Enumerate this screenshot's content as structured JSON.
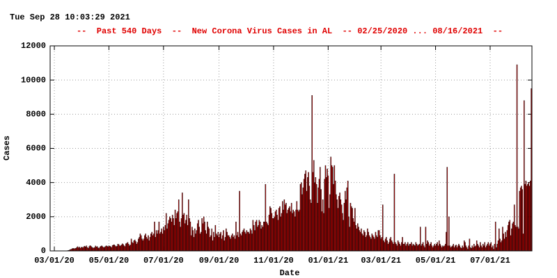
{
  "timestamp": "Tue Sep 28 10:03:29 2021",
  "chart_data": {
    "type": "bar",
    "title": "--  Past 540 Days  --  New Corona Virus Cases in AL  -- 02/25/2020 ... 08/16/2021  --",
    "xlabel": "Date",
    "ylabel": "Cases",
    "grid": true,
    "xlim": [
      -4.7,
      533.7
    ],
    "ylim": [
      0,
      12000
    ],
    "yticks": [
      0,
      2000,
      4000,
      6000,
      8000,
      10000,
      12000
    ],
    "xticks": [
      {
        "value": 0,
        "label": "03/01/20"
      },
      {
        "value": 61,
        "label": "05/01/20"
      },
      {
        "value": 122,
        "label": "07/01/20"
      },
      {
        "value": 184,
        "label": "09/01/20"
      },
      {
        "value": 245,
        "label": "11/01/20"
      },
      {
        "value": 306,
        "label": "01/01/21"
      },
      {
        "value": 365,
        "label": "03/01/21"
      },
      {
        "value": 426,
        "label": "05/01/21"
      },
      {
        "value": 487,
        "label": "07/01/21"
      }
    ],
    "x": [
      -5,
      -4,
      -3,
      -2,
      -1,
      0,
      1,
      2,
      3,
      4,
      5,
      6,
      7,
      8,
      9,
      10,
      11,
      12,
      13,
      14,
      15,
      16,
      17,
      18,
      19,
      20,
      21,
      22,
      23,
      24,
      25,
      26,
      27,
      28,
      29,
      30,
      31,
      32,
      33,
      34,
      35,
      36,
      37,
      38,
      39,
      40,
      41,
      42,
      43,
      44,
      45,
      46,
      47,
      48,
      49,
      50,
      51,
      52,
      53,
      54,
      55,
      56,
      57,
      58,
      59,
      60,
      61,
      62,
      63,
      64,
      65,
      66,
      67,
      68,
      69,
      70,
      71,
      72,
      73,
      74,
      75,
      76,
      77,
      78,
      79,
      80,
      81,
      82,
      83,
      84,
      85,
      86,
      87,
      88,
      89,
      90,
      91,
      92,
      93,
      94,
      95,
      96,
      97,
      98,
      99,
      100,
      101,
      102,
      103,
      104,
      105,
      106,
      107,
      108,
      109,
      110,
      111,
      112,
      113,
      114,
      115,
      116,
      117,
      118,
      119,
      120,
      121,
      122,
      123,
      124,
      125,
      126,
      127,
      128,
      129,
      130,
      131,
      132,
      133,
      134,
      135,
      136,
      137,
      138,
      139,
      140,
      141,
      142,
      143,
      144,
      145,
      146,
      147,
      148,
      149,
      150,
      151,
      152,
      153,
      154,
      155,
      156,
      157,
      158,
      159,
      160,
      161,
      162,
      163,
      164,
      165,
      166,
      167,
      168,
      169,
      170,
      171,
      172,
      173,
      174,
      175,
      176,
      177,
      178,
      179,
      180,
      181,
      182,
      183,
      184,
      185,
      186,
      187,
      188,
      189,
      190,
      191,
      192,
      193,
      194,
      195,
      196,
      197,
      198,
      199,
      200,
      201,
      202,
      203,
      204,
      205,
      206,
      207,
      208,
      209,
      210,
      211,
      212,
      213,
      214,
      215,
      216,
      217,
      218,
      219,
      220,
      221,
      222,
      223,
      224,
      225,
      226,
      227,
      228,
      229,
      230,
      231,
      232,
      233,
      234,
      235,
      236,
      237,
      238,
      239,
      240,
      241,
      242,
      243,
      244,
      245,
      246,
      247,
      248,
      249,
      250,
      251,
      252,
      253,
      254,
      255,
      256,
      257,
      258,
      259,
      260,
      261,
      262,
      263,
      264,
      265,
      266,
      267,
      268,
      269,
      270,
      271,
      272,
      273,
      274,
      275,
      276,
      277,
      278,
      279,
      280,
      281,
      282,
      283,
      284,
      285,
      286,
      287,
      288,
      289,
      290,
      291,
      292,
      293,
      294,
      295,
      296,
      297,
      298,
      299,
      300,
      301,
      302,
      303,
      304,
      305,
      306,
      307,
      308,
      309,
      310,
      311,
      312,
      313,
      314,
      315,
      316,
      317,
      318,
      319,
      320,
      321,
      322,
      323,
      324,
      325,
      326,
      327,
      328,
      329,
      330,
      331,
      332,
      333,
      334,
      335,
      336,
      337,
      338,
      339,
      340,
      341,
      342,
      343,
      344,
      345,
      346,
      347,
      348,
      349,
      350,
      351,
      352,
      353,
      354,
      355,
      356,
      357,
      358,
      359,
      360,
      361,
      362,
      363,
      364,
      365,
      366,
      367,
      368,
      369,
      370,
      371,
      372,
      373,
      374,
      375,
      376,
      377,
      378,
      379,
      380,
      381,
      382,
      383,
      384,
      385,
      386,
      387,
      388,
      389,
      390,
      391,
      392,
      393,
      394,
      395,
      396,
      397,
      398,
      399,
      400,
      401,
      402,
      403,
      404,
      405,
      406,
      407,
      408,
      409,
      410,
      411,
      412,
      413,
      414,
      415,
      416,
      417,
      418,
      419,
      420,
      421,
      422,
      423,
      424,
      425,
      426,
      427,
      428,
      429,
      430,
      431,
      432,
      433,
      434,
      435,
      436,
      437,
      438,
      439,
      440,
      441,
      442,
      443,
      444,
      445,
      446,
      447,
      448,
      449,
      450,
      451,
      452,
      453,
      454,
      455,
      456,
      457,
      458,
      459,
      460,
      461,
      462,
      463,
      464,
      465,
      466,
      467,
      468,
      469,
      470,
      471,
      472,
      473,
      474,
      475,
      476,
      477,
      478,
      479,
      480,
      481,
      482,
      483,
      484,
      485,
      486,
      487,
      488,
      489,
      490,
      491,
      492,
      493,
      494,
      495,
      496,
      497,
      498,
      499,
      500,
      501,
      502,
      503,
      504,
      505,
      506,
      507,
      508,
      509,
      510,
      511,
      512,
      513,
      514,
      515,
      516,
      517,
      518,
      519,
      520,
      521,
      522,
      523,
      524,
      525,
      526,
      527,
      528,
      529,
      530,
      531,
      532,
      533
    ],
    "series": [
      {
        "color": "#c00000",
        "edge": "#000000",
        "values": [
          0,
          0,
          0,
          0,
          0,
          0,
          0,
          0,
          0,
          0,
          0,
          0,
          0,
          0,
          0,
          0,
          0,
          5,
          6,
          12,
          20,
          30,
          50,
          80,
          100,
          130,
          150,
          130,
          140,
          150,
          200,
          250,
          180,
          230,
          150,
          210,
          220,
          180,
          250,
          280,
          230,
          300,
          200,
          150,
          260,
          310,
          280,
          220,
          180,
          170,
          200,
          290,
          240,
          260,
          180,
          150,
          230,
          270,
          300,
          250,
          200,
          210,
          260,
          300,
          280,
          240,
          300,
          280,
          250,
          200,
          320,
          350,
          360,
          300,
          250,
          280,
          400,
          380,
          300,
          290,
          350,
          420,
          380,
          300,
          260,
          420,
          450,
          500,
          400,
          300,
          350,
          700,
          500,
          450,
          600,
          650,
          550,
          400,
          500,
          700,
          800,
          1000,
          900,
          700,
          600,
          700,
          900,
          1000,
          800,
          700,
          900,
          600,
          800,
          1000,
          1100,
          900,
          1000,
          1700,
          800,
          1200,
          1000,
          1200,
          1700,
          1000,
          1100,
          1300,
          1000,
          1400,
          1200,
          1500,
          2200,
          1300,
          1600,
          1800,
          2000,
          1900,
          1700,
          2100,
          1900,
          1500,
          2400,
          1900,
          2200,
          2300,
          3000,
          1700,
          1400,
          1900,
          3400,
          2100,
          2200,
          1600,
          1800,
          2100,
          1500,
          3000,
          1900,
          1700,
          900,
          1400,
          1200,
          800,
          1300,
          1000,
          1200,
          1600,
          1800,
          1400,
          1000,
          1100,
          1900,
          1600,
          2000,
          1700,
          1200,
          1000,
          1700,
          1400,
          1300,
          800,
          900,
          1300,
          600,
          1100,
          800,
          1500,
          1000,
          900,
          1100,
          800,
          1000,
          1100,
          700,
          900,
          1200,
          600,
          800,
          1300,
          1100,
          900,
          900,
          800,
          700,
          900,
          1000,
          800,
          900,
          700,
          1700,
          900,
          1100,
          800,
          3500,
          1000,
          900,
          1100,
          1200,
          1300,
          1100,
          1000,
          1200,
          1100,
          1100,
          1000,
          1300,
          1200,
          1000,
          1800,
          1500,
          1200,
          1700,
          1800,
          1400,
          1500,
          1800,
          1700,
          1300,
          1500,
          1400,
          1700,
          1700,
          3900,
          1700,
          1600,
          1500,
          2100,
          2600,
          2500,
          2200,
          1900,
          1900,
          2000,
          2300,
          2400,
          2100,
          1800,
          2500,
          2600,
          2000,
          2200,
          2900,
          2400,
          3000,
          2700,
          2800,
          2200,
          2400,
          2500,
          2600,
          2300,
          2800,
          2200,
          2400,
          2300,
          2000,
          2400,
          2900,
          2400,
          2300,
          2400,
          3900,
          4000,
          3300,
          3700,
          4200,
          4500,
          4700,
          3500,
          4300,
          4600,
          3800,
          3000,
          2800,
          9100,
          4600,
          5300,
          4000,
          4300,
          3900,
          2800,
          3700,
          4200,
          4900,
          3600,
          2300,
          3000,
          2200,
          4200,
          5000,
          4300,
          4800,
          4400,
          2500,
          3300,
          5500,
          5000,
          4900,
          3900,
          5000,
          4100,
          3300,
          3000,
          2500,
          3200,
          3400,
          3000,
          2700,
          2200,
          1800,
          2800,
          3500,
          3000,
          3700,
          4100,
          2000,
          1400,
          2800,
          2600,
          2500,
          1900,
          1700,
          2500,
          1500,
          1300,
          1600,
          1400,
          1200,
          1100,
          1300,
          1000,
          900,
          1200,
          1100,
          800,
          900,
          1300,
          1100,
          900,
          800,
          700,
          1000,
          900,
          800,
          700,
          1100,
          900,
          800,
          1200,
          1200,
          900,
          700,
          800,
          2700,
          600,
          500,
          700,
          800,
          600,
          400,
          500,
          700,
          800,
          600,
          500,
          400,
          4500,
          500,
          400,
          300,
          600,
          500,
          400,
          300,
          500,
          800,
          400,
          400,
          500,
          300,
          400,
          500,
          300,
          400,
          400,
          500,
          300,
          400,
          350,
          300,
          500,
          400,
          300,
          350,
          400,
          1400,
          300,
          400,
          500,
          300,
          200,
          1400,
          400,
          600,
          500,
          300,
          400,
          500,
          300,
          200,
          300,
          400,
          300,
          400,
          500,
          300,
          600,
          400,
          300,
          200,
          300,
          250,
          300,
          400,
          1100,
          4900,
          300,
          2000,
          300,
          200,
          250,
          300,
          400,
          200,
          300,
          350,
          200,
          300,
          400,
          300,
          200,
          150,
          300,
          200,
          600,
          500,
          300,
          200,
          100,
          300,
          700,
          200,
          150,
          300,
          200,
          400,
          250,
          300,
          600,
          400,
          300,
          200,
          500,
          300,
          200,
          400,
          300,
          500,
          200,
          300,
          400,
          500,
          300,
          400,
          500,
          200,
          300,
          100,
          400,
          1700,
          200,
          400,
          600,
          1300,
          700,
          500,
          600,
          1400,
          1000,
          700,
          1100,
          800,
          1200,
          1500,
          1700,
          1800,
          900,
          1300,
          1600,
          1700,
          2700,
          1500,
          1400,
          10900,
          1400,
          1300,
          3500,
          3700,
          3800,
          3600,
          1000,
          8800,
          3900,
          4100,
          3800,
          3900,
          4000,
          3800,
          4100,
          9500
        ]
      }
    ]
  }
}
